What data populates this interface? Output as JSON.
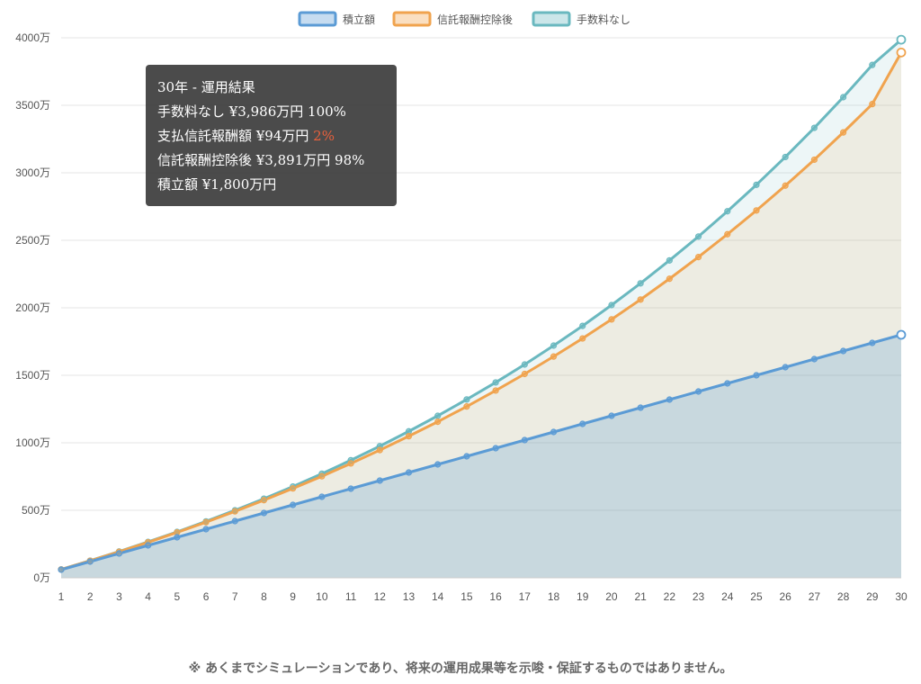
{
  "chart_data": {
    "type": "area",
    "x": [
      1,
      2,
      3,
      4,
      5,
      6,
      7,
      8,
      9,
      10,
      11,
      12,
      13,
      14,
      15,
      16,
      17,
      18,
      19,
      20,
      21,
      22,
      23,
      24,
      25,
      26,
      27,
      28,
      29,
      30
    ],
    "series": [
      {
        "name": "積立額",
        "color": "#5b9bd5",
        "fill": "rgba(91,155,213,0.25)",
        "values": [
          60,
          120,
          180,
          240,
          300,
          360,
          420,
          480,
          540,
          600,
          660,
          720,
          780,
          840,
          900,
          960,
          1020,
          1080,
          1140,
          1200,
          1260,
          1320,
          1380,
          1440,
          1500,
          1560,
          1620,
          1680,
          1740,
          1800
        ]
      },
      {
        "name": "信託報酬控除後",
        "color": "#f0a34e",
        "fill": "rgba(240,163,78,0.12)",
        "values": [
          62,
          126,
          193,
          263,
          336,
          412,
          492,
          575,
          662,
          752,
          847,
          946,
          1049,
          1156,
          1269,
          1387,
          1510,
          1639,
          1773,
          1914,
          2061,
          2215,
          2376,
          2545,
          2721,
          2905,
          3097,
          3299,
          3509,
          3891
        ]
      },
      {
        "name": "手数料なし",
        "color": "#6ab8bf",
        "fill": "rgba(106,184,191,0.12)",
        "values": [
          62,
          127,
          195,
          266,
          340,
          418,
          500,
          586,
          676,
          771,
          871,
          975,
          1085,
          1200,
          1321,
          1447,
          1580,
          1720,
          1866,
          2020,
          2181,
          2351,
          2528,
          2715,
          2911,
          3117,
          3333,
          3560,
          3799,
          3986
        ]
      }
    ],
    "y_ticks": [
      "0万",
      "500万",
      "1000万",
      "1500万",
      "2000万",
      "2500万",
      "3000万",
      "3500万",
      "4000万"
    ],
    "ylim": [
      0,
      4000
    ],
    "grid": true,
    "legend": "top-center"
  },
  "tooltip": {
    "title": "30年 - 運用結果",
    "rows": [
      {
        "text": "手数料なし ¥3,986万円 100%",
        "highlight": ""
      },
      {
        "text": "支払信託報酬額 ¥94万円 ",
        "highlight": "2%"
      },
      {
        "text": "信託報酬控除後 ¥3,891万円 98%",
        "highlight": ""
      },
      {
        "text": "積立額 ¥1,800万円",
        "highlight": ""
      }
    ]
  },
  "disclaimer": "※ あくまでシミュレーションであり、将来の運用成果等を示唆・保証するものではありません。"
}
